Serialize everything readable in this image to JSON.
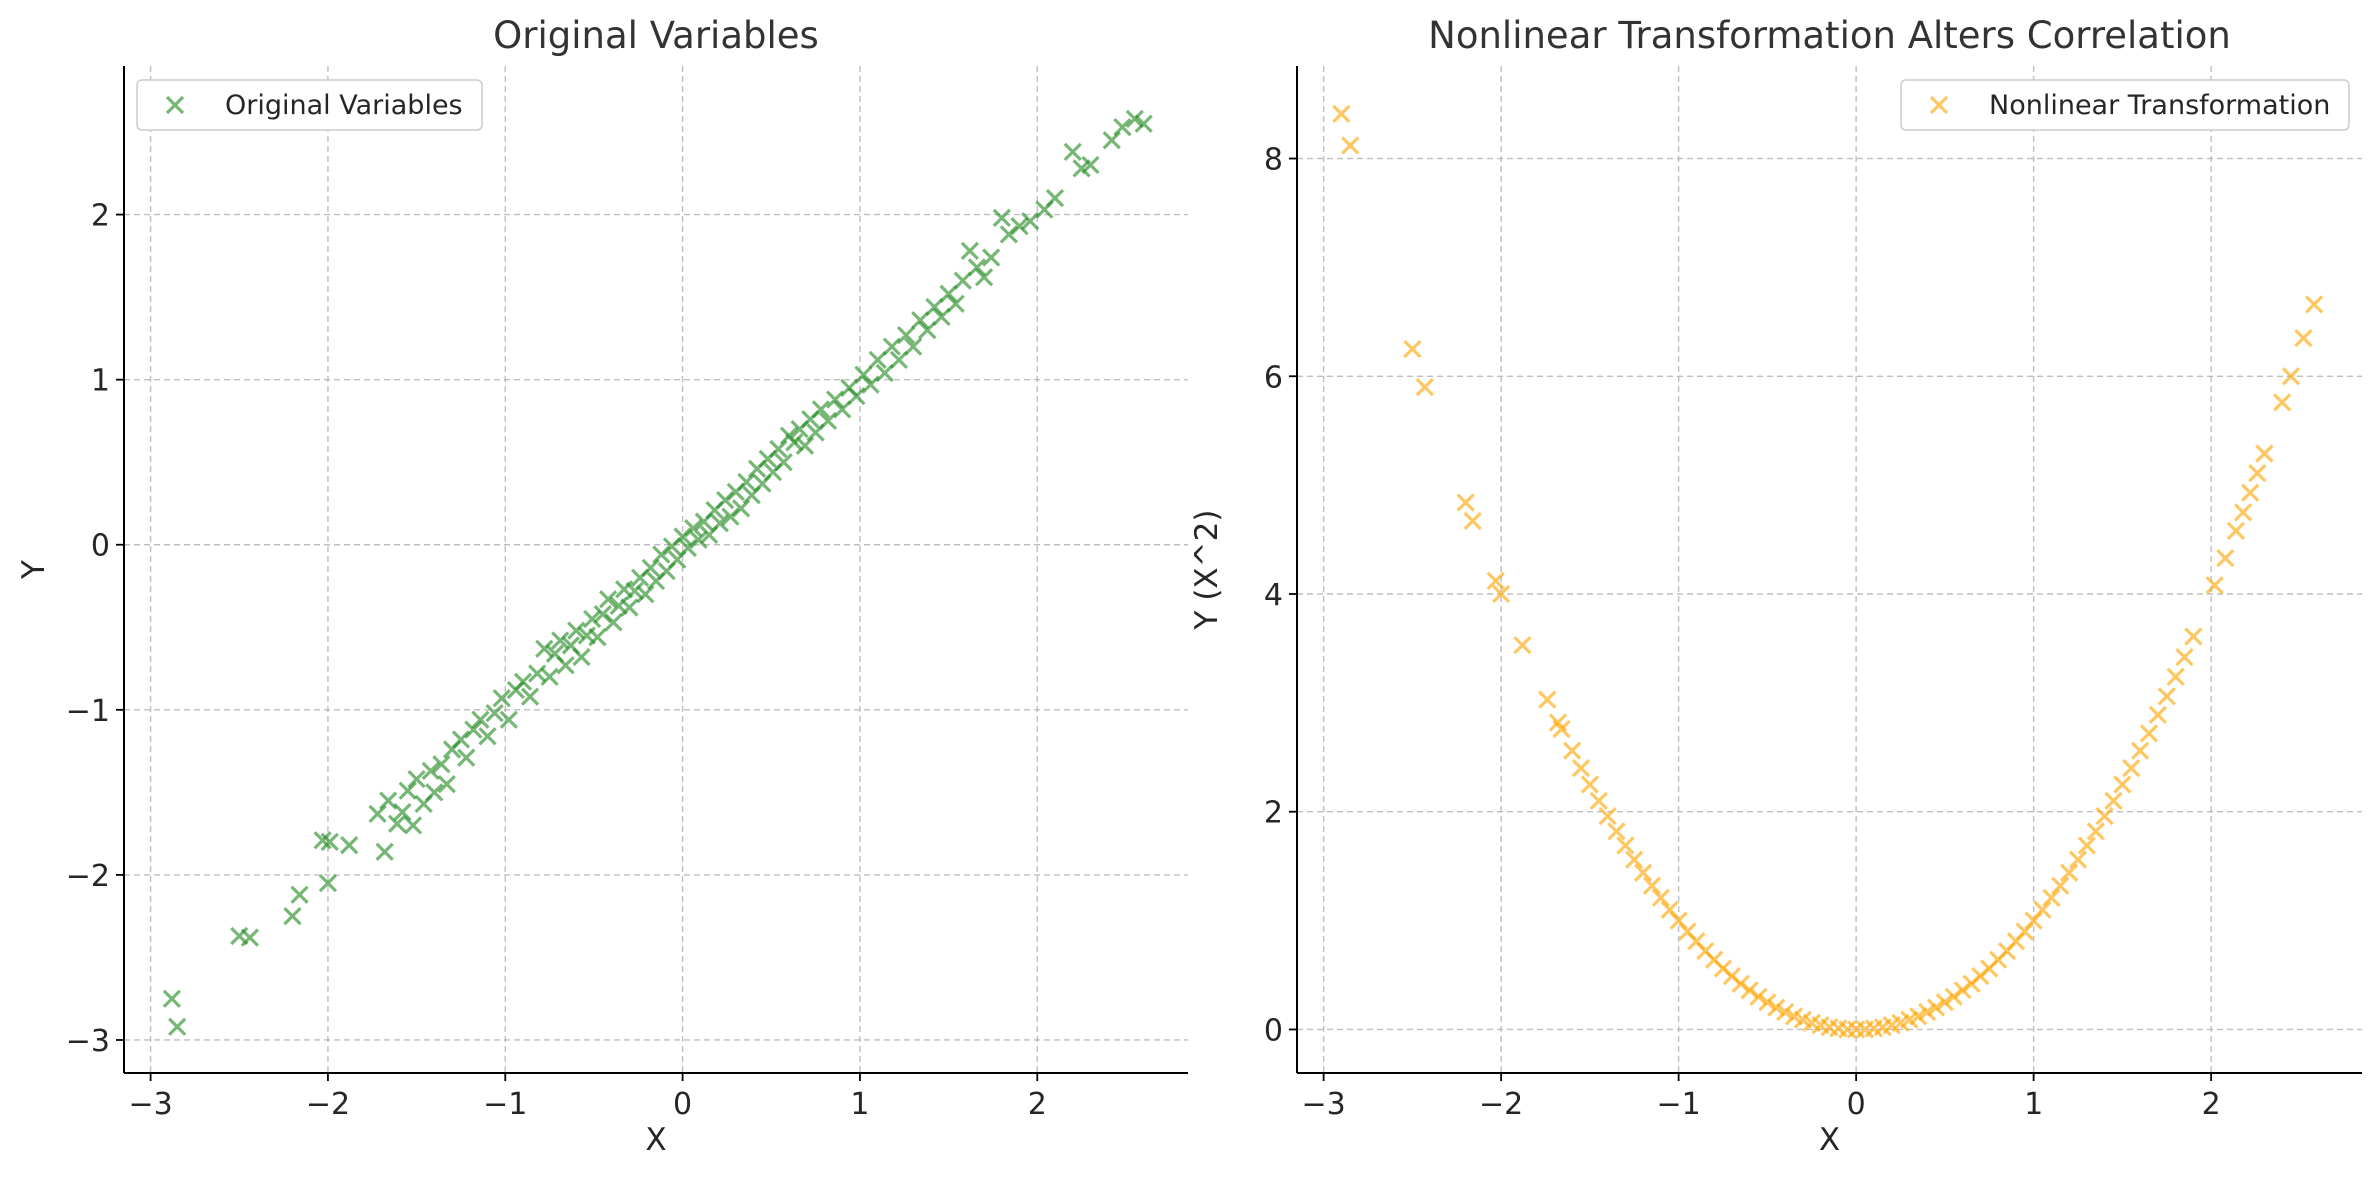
{
  "chart_data": [
    {
      "type": "scatter",
      "title": "Original Variables",
      "xlabel": "X",
      "ylabel": "Y",
      "xlim": [
        -3.15,
        2.85
      ],
      "ylim": [
        -3.2,
        2.9
      ],
      "xticks": [
        -3,
        -2,
        -1,
        0,
        1,
        2
      ],
      "yticks": [
        -3,
        -2,
        -1,
        0,
        1,
        2
      ],
      "xtick_labels": [
        "−3",
        "−2",
        "−1",
        "0",
        "1",
        "2"
      ],
      "ytick_labels": [
        "−3",
        "−2",
        "−1",
        "0",
        "1",
        "2"
      ],
      "grid": true,
      "legend_position": "top-left",
      "marker": "x",
      "color": "#228B22",
      "series": [
        {
          "name": "Original Variables",
          "points": [
            [
              -2.88,
              -2.75
            ],
            [
              -2.85,
              -2.92
            ],
            [
              -2.5,
              -2.37
            ],
            [
              -2.44,
              -2.38
            ],
            [
              -2.2,
              -2.25
            ],
            [
              -2.16,
              -2.12
            ],
            [
              -2.03,
              -1.79
            ],
            [
              -1.99,
              -1.8
            ],
            [
              -2.0,
              -2.05
            ],
            [
              -1.88,
              -1.82
            ],
            [
              -1.72,
              -1.63
            ],
            [
              -1.68,
              -1.86
            ],
            [
              -1.66,
              -1.55
            ],
            [
              -1.61,
              -1.69
            ],
            [
              -1.58,
              -1.62
            ],
            [
              -1.55,
              -1.49
            ],
            [
              -1.52,
              -1.7
            ],
            [
              -1.5,
              -1.42
            ],
            [
              -1.46,
              -1.57
            ],
            [
              -1.42,
              -1.37
            ],
            [
              -1.4,
              -1.5
            ],
            [
              -1.36,
              -1.33
            ],
            [
              -1.33,
              -1.45
            ],
            [
              -1.3,
              -1.24
            ],
            [
              -1.25,
              -1.18
            ],
            [
              -1.22,
              -1.29
            ],
            [
              -1.18,
              -1.12
            ],
            [
              -1.14,
              -1.06
            ],
            [
              -1.1,
              -1.16
            ],
            [
              -1.06,
              -1.02
            ],
            [
              -1.02,
              -0.93
            ],
            [
              -0.98,
              -1.06
            ],
            [
              -0.94,
              -0.88
            ],
            [
              -0.9,
              -0.83
            ],
            [
              -0.86,
              -0.92
            ],
            [
              -0.82,
              -0.78
            ],
            [
              -0.78,
              -0.63
            ],
            [
              -0.75,
              -0.8
            ],
            [
              -0.72,
              -0.66
            ],
            [
              -0.69,
              -0.58
            ],
            [
              -0.66,
              -0.73
            ],
            [
              -0.63,
              -0.61
            ],
            [
              -0.6,
              -0.52
            ],
            [
              -0.57,
              -0.68
            ],
            [
              -0.54,
              -0.55
            ],
            [
              -0.51,
              -0.45
            ],
            [
              -0.48,
              -0.56
            ],
            [
              -0.45,
              -0.42
            ],
            [
              -0.42,
              -0.33
            ],
            [
              -0.39,
              -0.47
            ],
            [
              -0.36,
              -0.37
            ],
            [
              -0.33,
              -0.27
            ],
            [
              -0.3,
              -0.38
            ],
            [
              -0.27,
              -0.28
            ],
            [
              -0.24,
              -0.2
            ],
            [
              -0.21,
              -0.3
            ],
            [
              -0.18,
              -0.14
            ],
            [
              -0.15,
              -0.22
            ],
            [
              -0.12,
              -0.06
            ],
            [
              -0.09,
              -0.16
            ],
            [
              -0.06,
              -0.01
            ],
            [
              -0.03,
              -0.09
            ],
            [
              0.0,
              0.05
            ],
            [
              0.03,
              -0.02
            ],
            [
              0.06,
              0.1
            ],
            [
              0.09,
              0.03
            ],
            [
              0.12,
              0.14
            ],
            [
              0.15,
              0.06
            ],
            [
              0.18,
              0.21
            ],
            [
              0.21,
              0.13
            ],
            [
              0.24,
              0.27
            ],
            [
              0.27,
              0.17
            ],
            [
              0.3,
              0.32
            ],
            [
              0.33,
              0.22
            ],
            [
              0.36,
              0.38
            ],
            [
              0.39,
              0.3
            ],
            [
              0.42,
              0.46
            ],
            [
              0.45,
              0.37
            ],
            [
              0.48,
              0.52
            ],
            [
              0.51,
              0.44
            ],
            [
              0.54,
              0.58
            ],
            [
              0.57,
              0.5
            ],
            [
              0.6,
              0.66
            ],
            [
              0.63,
              0.62
            ],
            [
              0.66,
              0.7
            ],
            [
              0.69,
              0.6
            ],
            [
              0.72,
              0.76
            ],
            [
              0.75,
              0.68
            ],
            [
              0.78,
              0.82
            ],
            [
              0.82,
              0.75
            ],
            [
              0.86,
              0.88
            ],
            [
              0.9,
              0.82
            ],
            [
              0.94,
              0.95
            ],
            [
              0.98,
              0.9
            ],
            [
              1.02,
              1.03
            ],
            [
              1.06,
              0.97
            ],
            [
              1.1,
              1.12
            ],
            [
              1.14,
              1.04
            ],
            [
              1.18,
              1.2
            ],
            [
              1.22,
              1.12
            ],
            [
              1.26,
              1.27
            ],
            [
              1.3,
              1.2
            ],
            [
              1.34,
              1.36
            ],
            [
              1.38,
              1.3
            ],
            [
              1.42,
              1.44
            ],
            [
              1.46,
              1.38
            ],
            [
              1.5,
              1.52
            ],
            [
              1.54,
              1.46
            ],
            [
              1.58,
              1.6
            ],
            [
              1.62,
              1.78
            ],
            [
              1.66,
              1.68
            ],
            [
              1.7,
              1.62
            ],
            [
              1.74,
              1.74
            ],
            [
              1.8,
              1.98
            ],
            [
              1.84,
              1.88
            ],
            [
              1.9,
              1.93
            ],
            [
              1.96,
              1.96
            ],
            [
              2.04,
              2.03
            ],
            [
              2.1,
              2.1
            ],
            [
              2.2,
              2.38
            ],
            [
              2.25,
              2.28
            ],
            [
              2.3,
              2.3
            ],
            [
              2.42,
              2.45
            ],
            [
              2.48,
              2.53
            ],
            [
              2.55,
              2.58
            ],
            [
              2.6,
              2.55
            ]
          ]
        }
      ]
    },
    {
      "type": "scatter",
      "title": "Nonlinear Transformation Alters Correlation",
      "xlabel": "X",
      "ylabel": "Y (X^2)",
      "xlim": [
        -3.15,
        2.85
      ],
      "ylim": [
        -0.4,
        8.85
      ],
      "xticks": [
        -3,
        -2,
        -1,
        0,
        1,
        2
      ],
      "yticks": [
        0,
        2,
        4,
        6,
        8
      ],
      "xtick_labels": [
        "−3",
        "−2",
        "−1",
        "0",
        "1",
        "2"
      ],
      "ytick_labels": [
        "0",
        "2",
        "4",
        "6",
        "8"
      ],
      "grid": true,
      "legend_position": "top-right",
      "marker": "x",
      "color": "#FFA500",
      "series": [
        {
          "name": "Nonlinear Transformation",
          "points": [
            [
              -2.9,
              8.41
            ],
            [
              -2.85,
              8.12
            ],
            [
              -2.5,
              6.25
            ],
            [
              -2.43,
              5.9
            ],
            [
              -2.2,
              4.84
            ],
            [
              -2.16,
              4.67
            ],
            [
              -2.03,
              4.12
            ],
            [
              -2.0,
              4.0
            ],
            [
              -1.88,
              3.53
            ],
            [
              -1.74,
              3.03
            ],
            [
              -1.68,
              2.82
            ],
            [
              -1.66,
              2.76
            ],
            [
              -1.6,
              2.56
            ],
            [
              -1.55,
              2.4
            ],
            [
              -1.5,
              2.25
            ],
            [
              -1.45,
              2.1
            ],
            [
              -1.4,
              1.96
            ],
            [
              -1.35,
              1.82
            ],
            [
              -1.3,
              1.69
            ],
            [
              -1.25,
              1.56
            ],
            [
              -1.2,
              1.44
            ],
            [
              -1.15,
              1.32
            ],
            [
              -1.1,
              1.21
            ],
            [
              -1.05,
              1.1
            ],
            [
              -1.0,
              1.0
            ],
            [
              -0.95,
              0.9
            ],
            [
              -0.9,
              0.81
            ],
            [
              -0.85,
              0.72
            ],
            [
              -0.8,
              0.64
            ],
            [
              -0.75,
              0.56
            ],
            [
              -0.7,
              0.49
            ],
            [
              -0.65,
              0.42
            ],
            [
              -0.6,
              0.36
            ],
            [
              -0.55,
              0.3
            ],
            [
              -0.5,
              0.25
            ],
            [
              -0.45,
              0.2
            ],
            [
              -0.4,
              0.16
            ],
            [
              -0.35,
              0.12
            ],
            [
              -0.3,
              0.09
            ],
            [
              -0.25,
              0.06
            ],
            [
              -0.2,
              0.04
            ],
            [
              -0.15,
              0.02
            ],
            [
              -0.1,
              0.01
            ],
            [
              -0.05,
              0.0
            ],
            [
              0.0,
              0.0
            ],
            [
              0.05,
              0.0
            ],
            [
              0.1,
              0.01
            ],
            [
              0.15,
              0.02
            ],
            [
              0.2,
              0.04
            ],
            [
              0.25,
              0.06
            ],
            [
              0.3,
              0.09
            ],
            [
              0.35,
              0.12
            ],
            [
              0.4,
              0.16
            ],
            [
              0.45,
              0.2
            ],
            [
              0.5,
              0.25
            ],
            [
              0.55,
              0.3
            ],
            [
              0.6,
              0.36
            ],
            [
              0.65,
              0.42
            ],
            [
              0.7,
              0.49
            ],
            [
              0.75,
              0.56
            ],
            [
              0.8,
              0.64
            ],
            [
              0.85,
              0.72
            ],
            [
              0.9,
              0.81
            ],
            [
              0.95,
              0.9
            ],
            [
              1.0,
              1.0
            ],
            [
              1.05,
              1.1
            ],
            [
              1.1,
              1.21
            ],
            [
              1.15,
              1.32
            ],
            [
              1.2,
              1.44
            ],
            [
              1.25,
              1.56
            ],
            [
              1.3,
              1.69
            ],
            [
              1.35,
              1.82
            ],
            [
              1.4,
              1.96
            ],
            [
              1.45,
              2.1
            ],
            [
              1.5,
              2.25
            ],
            [
              1.55,
              2.4
            ],
            [
              1.6,
              2.56
            ],
            [
              1.65,
              2.72
            ],
            [
              1.7,
              2.89
            ],
            [
              1.75,
              3.06
            ],
            [
              1.8,
              3.24
            ],
            [
              1.85,
              3.42
            ],
            [
              1.9,
              3.61
            ],
            [
              2.02,
              4.08
            ],
            [
              2.08,
              4.33
            ],
            [
              2.14,
              4.58
            ],
            [
              2.18,
              4.75
            ],
            [
              2.22,
              4.93
            ],
            [
              2.26,
              5.11
            ],
            [
              2.3,
              5.29
            ],
            [
              2.4,
              5.76
            ],
            [
              2.45,
              6.0
            ],
            [
              2.52,
              6.35
            ],
            [
              2.58,
              6.66
            ]
          ]
        }
      ]
    }
  ]
}
